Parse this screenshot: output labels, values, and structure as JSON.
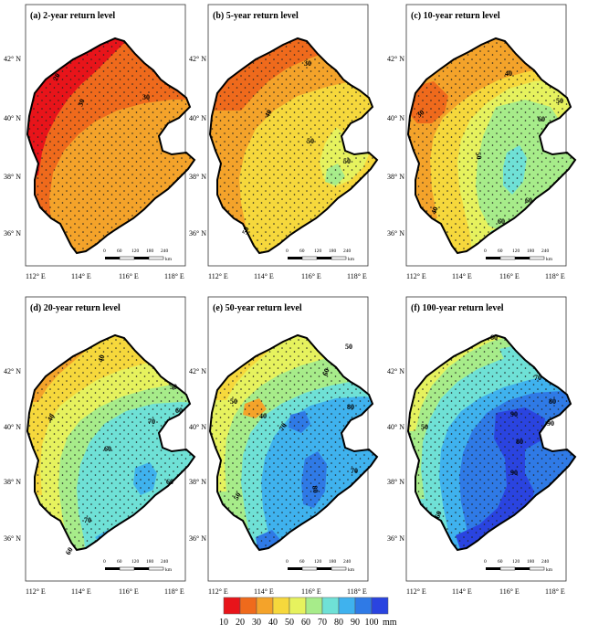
{
  "panels": [
    {
      "title": "(a) 2-year return level",
      "labels": [
        {
          "text": "30"
        },
        {
          "text": "30"
        },
        {
          "text": "20"
        }
      ]
    },
    {
      "title": "(b) 5-year return level",
      "labels": [
        {
          "text": "30"
        },
        {
          "text": "40"
        },
        {
          "text": "50"
        },
        {
          "text": "50"
        },
        {
          "text": "50"
        }
      ]
    },
    {
      "title": "(c) 10-year return level",
      "labels": [
        {
          "text": "40"
        },
        {
          "text": "50"
        },
        {
          "text": "30"
        },
        {
          "text": "60"
        },
        {
          "text": "50"
        },
        {
          "text": "40"
        },
        {
          "text": "60"
        },
        {
          "text": "60"
        }
      ]
    },
    {
      "title": "(d) 20-year return level",
      "labels": [
        {
          "text": "40"
        },
        {
          "text": "50"
        },
        {
          "text": "60"
        },
        {
          "text": "40"
        },
        {
          "text": "70"
        },
        {
          "text": "60"
        },
        {
          "text": "60"
        },
        {
          "text": "70"
        },
        {
          "text": "60"
        }
      ]
    },
    {
      "title": "(e) 50-year return level",
      "labels": [
        {
          "text": "50"
        },
        {
          "text": "60"
        },
        {
          "text": "50"
        },
        {
          "text": "40"
        },
        {
          "text": "70"
        },
        {
          "text": "80"
        },
        {
          "text": "70"
        },
        {
          "text": "80"
        },
        {
          "text": "50"
        }
      ]
    },
    {
      "title": "(f) 100-year return level",
      "labels": [
        {
          "text": "60"
        },
        {
          "text": "70"
        },
        {
          "text": "50"
        },
        {
          "text": "80"
        },
        {
          "text": "90"
        },
        {
          "text": "90"
        },
        {
          "text": "80"
        },
        {
          "text": "90"
        },
        {
          "text": "60"
        }
      ]
    }
  ],
  "lat_ticks": [
    "42° N",
    "40° N",
    "38° N",
    "36° N"
  ],
  "lon_ticks": [
    "112° E",
    "114° E",
    "116° E",
    "118° E"
  ],
  "scale_bar": {
    "ticks": [
      "0",
      "60",
      "120",
      "180",
      "240"
    ],
    "unit": "km"
  },
  "legend": {
    "values": [
      "10",
      "20",
      "30",
      "40",
      "50",
      "60",
      "70",
      "80",
      "90",
      "100"
    ],
    "unit": "mm",
    "colors": [
      "#e8141a",
      "#ef6a1c",
      "#f4a32a",
      "#f6d83c",
      "#e6f25e",
      "#a7ec8a",
      "#6fe1d6",
      "#3fb2ee",
      "#2f7ae6",
      "#2a44e0"
    ]
  },
  "colors": {
    "c20": "#e8141a",
    "c30": "#ef6a1c",
    "c40": "#f4a32a",
    "c50": "#f6d83c",
    "c55": "#e6f25e",
    "c60": "#a7ec8a",
    "c70": "#6fe1d6",
    "c80": "#3fb2ee",
    "c90": "#2f7ae6",
    "c100": "#2a44e0"
  }
}
